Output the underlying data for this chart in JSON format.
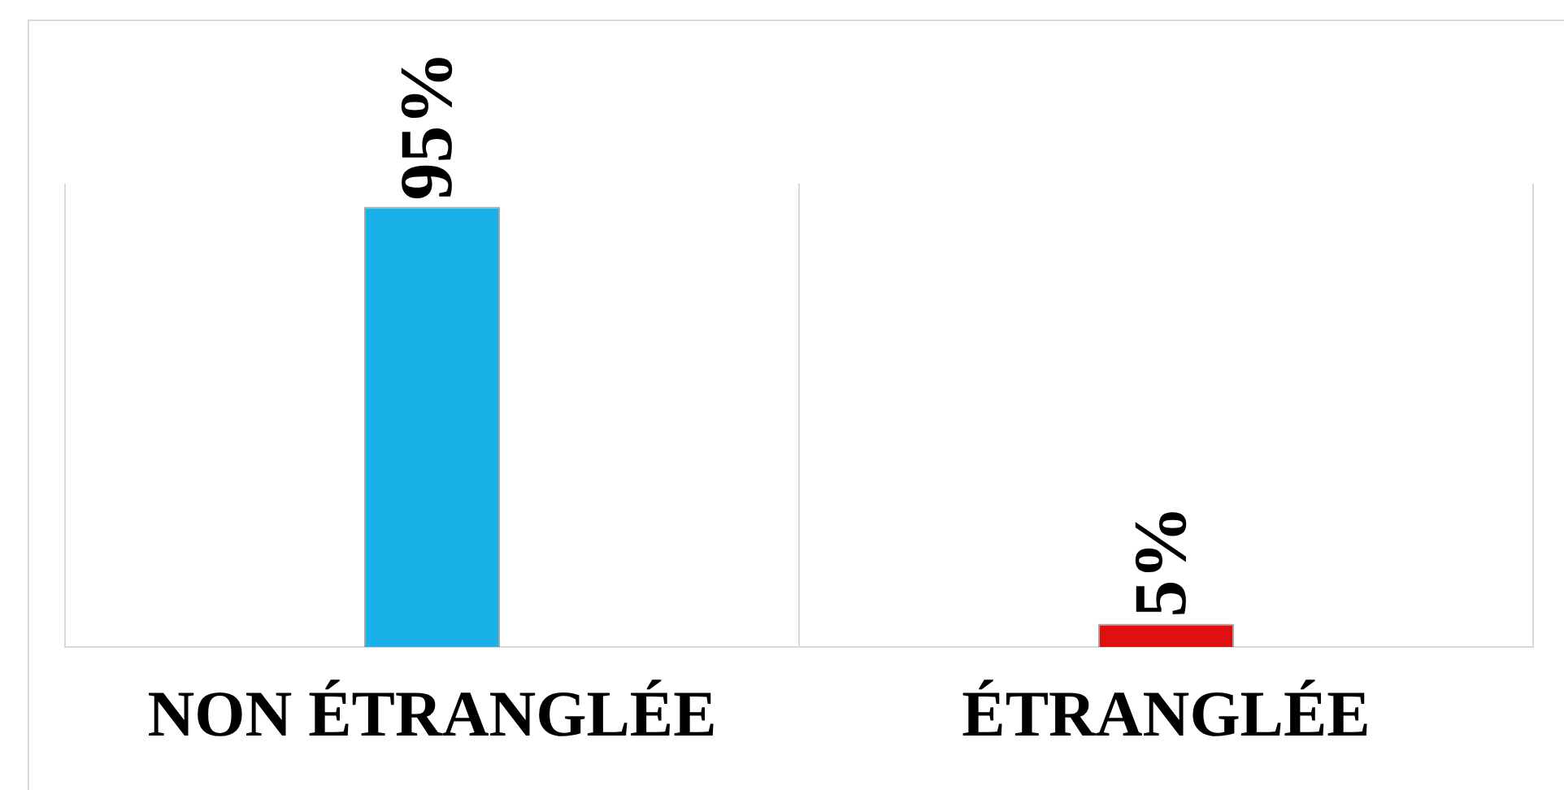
{
  "chart_data": {
    "type": "bar",
    "categories": [
      "NON ÉTRANGLÉE",
      "ÉTRANGLÉE"
    ],
    "values": [
      95,
      5
    ],
    "colors": [
      "#1ab0e8",
      "#e01010"
    ],
    "value_labels": [
      "95%",
      "5%"
    ],
    "ylim": [
      0,
      100
    ],
    "grid": "x",
    "tick_labels": "x",
    "legend": false
  }
}
